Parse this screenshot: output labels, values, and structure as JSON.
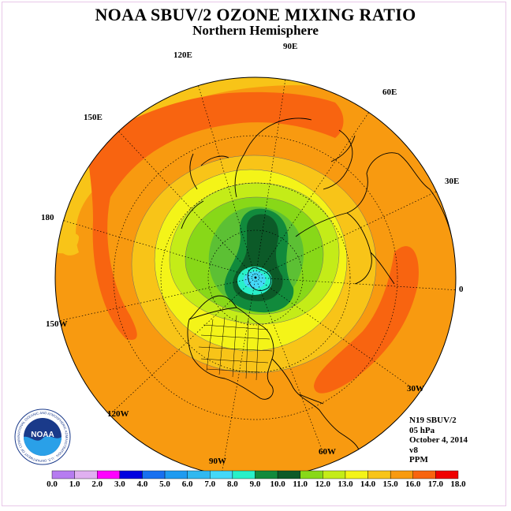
{
  "title": "NOAA SBUV/2 OZONE MIXING RATIO",
  "subtitle": "Northern Hemisphere",
  "longitude_labels": [
    "90E",
    "60E",
    "30E",
    "0",
    "30W",
    "60W",
    "90W",
    "120W",
    "150W",
    "180",
    "150E",
    "120E"
  ],
  "info": {
    "satellite": "N19 SBUV/2",
    "pressure": "05 hPa",
    "date": "October 4, 2014",
    "version": "v8",
    "units": "PPM"
  },
  "colorbar": {
    "labels": [
      "0.0",
      "1.0",
      "2.0",
      "3.0",
      "4.0",
      "5.0",
      "6.0",
      "7.0",
      "8.0",
      "9.0",
      "10.0",
      "11.0",
      "12.0",
      "13.0",
      "14.0",
      "15.0",
      "16.0",
      "17.0",
      "18.0"
    ],
    "colors": [
      "#b67cf0",
      "#e0b0f0",
      "#ff00ff",
      "#0000e0",
      "#1870f0",
      "#1f9bf0",
      "#30b8f0",
      "#44d8f8",
      "#28f0c8",
      "#118a3c",
      "#0c5a28",
      "#88d818",
      "#c4ec18",
      "#f4f418",
      "#f8c418",
      "#f89a10",
      "#f86410",
      "#f00000",
      "#885030"
    ]
  },
  "logo_text": "NOAA",
  "logo_ring_text": "NATIONAL OCEANIC AND ATMOSPHERIC ADMINISTRATION · U.S. DEPARTMENT OF COMMERCE"
}
